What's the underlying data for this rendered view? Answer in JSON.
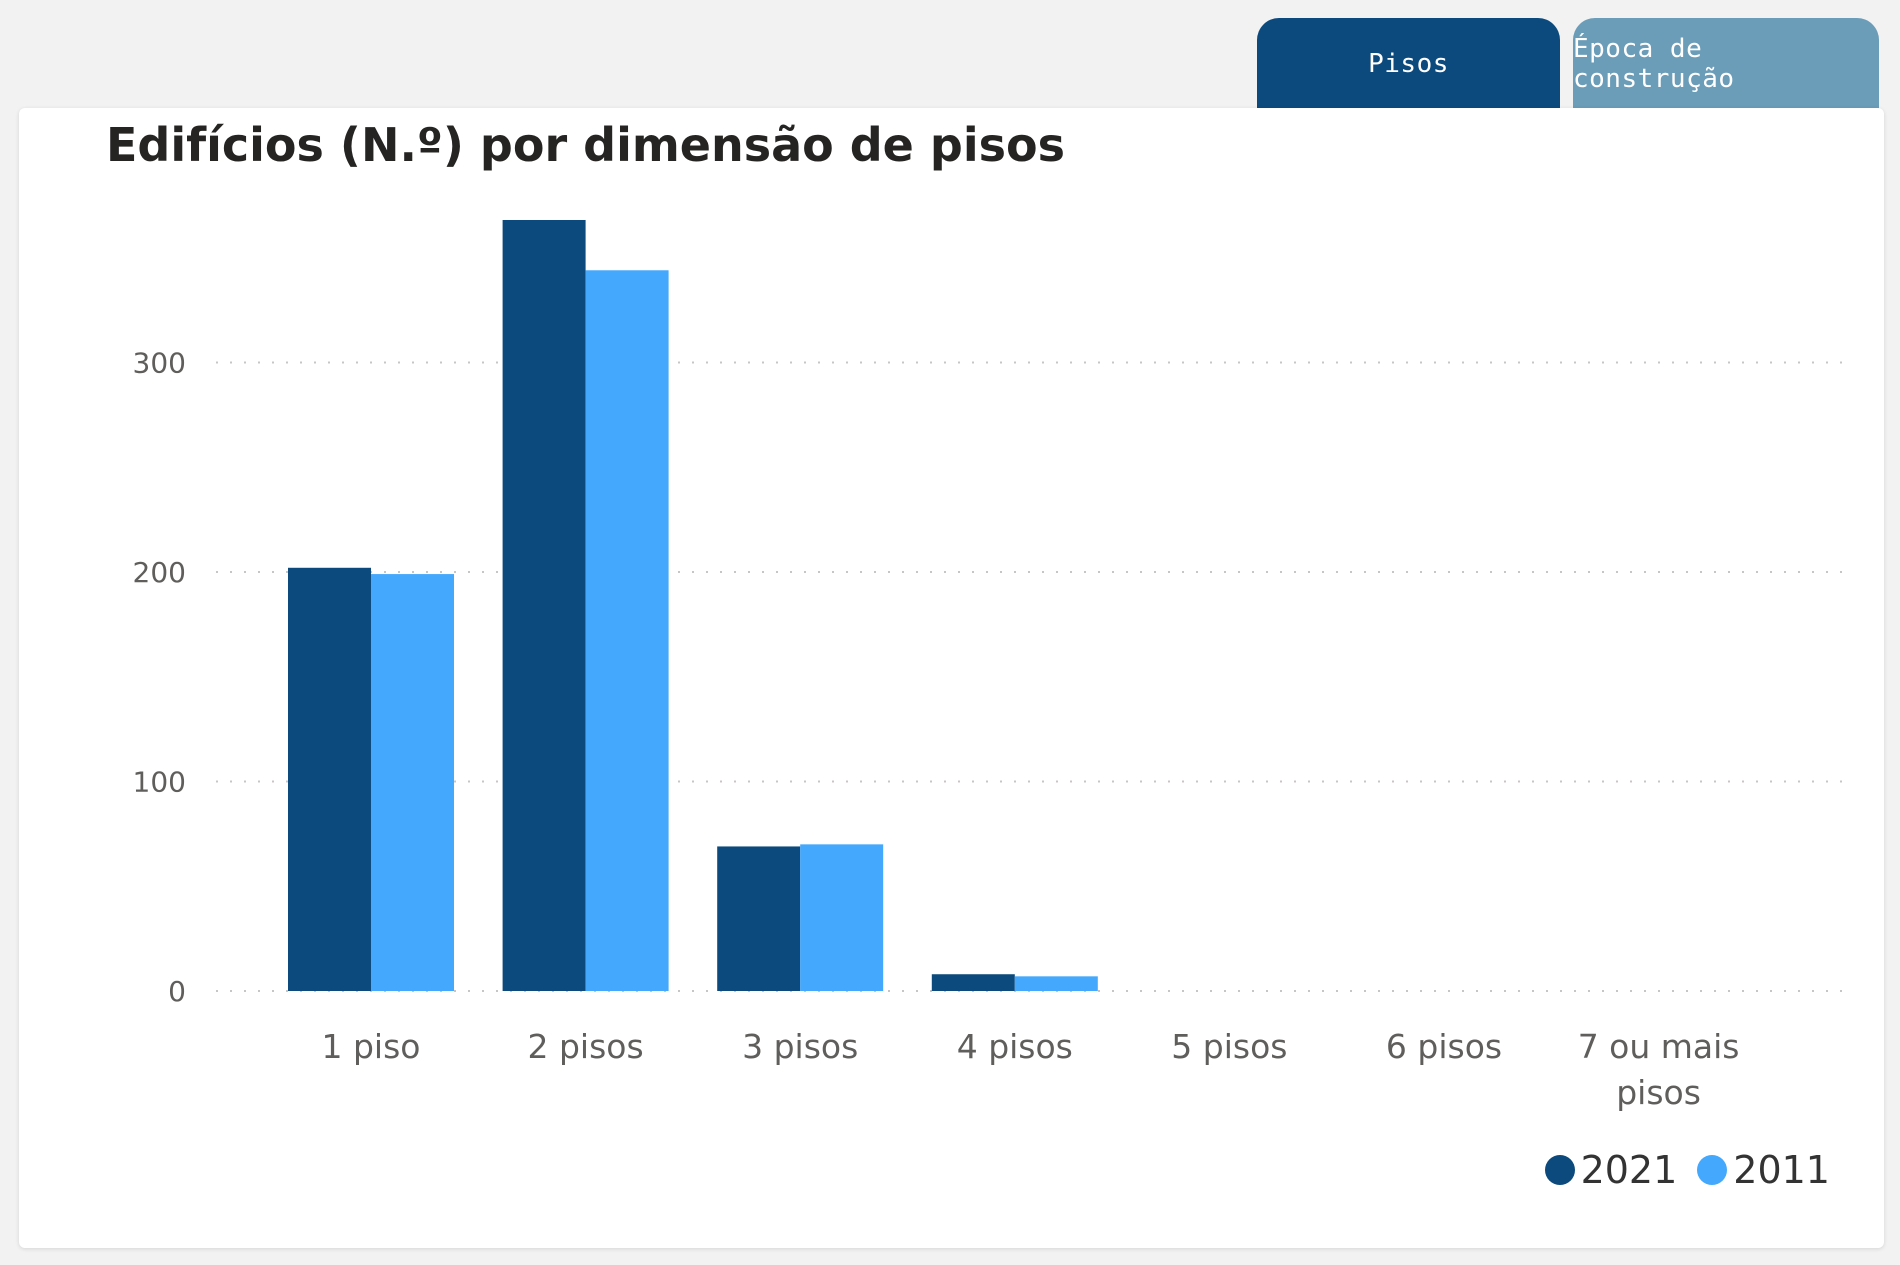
{
  "tabs": [
    {
      "label": "Pisos",
      "active": true,
      "color": "#0c4a7e"
    },
    {
      "label": "Época de construção",
      "active": false,
      "color": "#6b9cb8"
    }
  ],
  "chart_data": {
    "type": "bar",
    "title": "Edifícios (N.º) por dimensão de pisos",
    "categories": [
      "1 piso",
      "2 pisos",
      "3 pisos",
      "4 pisos",
      "5 pisos",
      "6 pisos",
      "7 ou mais pisos"
    ],
    "series": [
      {
        "name": "2021",
        "color": "#0c4a7e",
        "values": [
          202,
          368,
          69,
          8,
          0,
          0,
          0
        ]
      },
      {
        "name": "2011",
        "color": "#44a8fc",
        "values": [
          199,
          344,
          70,
          7,
          0,
          0,
          0
        ]
      }
    ],
    "y_ticks": [
      0,
      100,
      200,
      300
    ],
    "ylim": [
      0,
      368
    ],
    "grid": true,
    "legend_position": "bottom-right"
  }
}
